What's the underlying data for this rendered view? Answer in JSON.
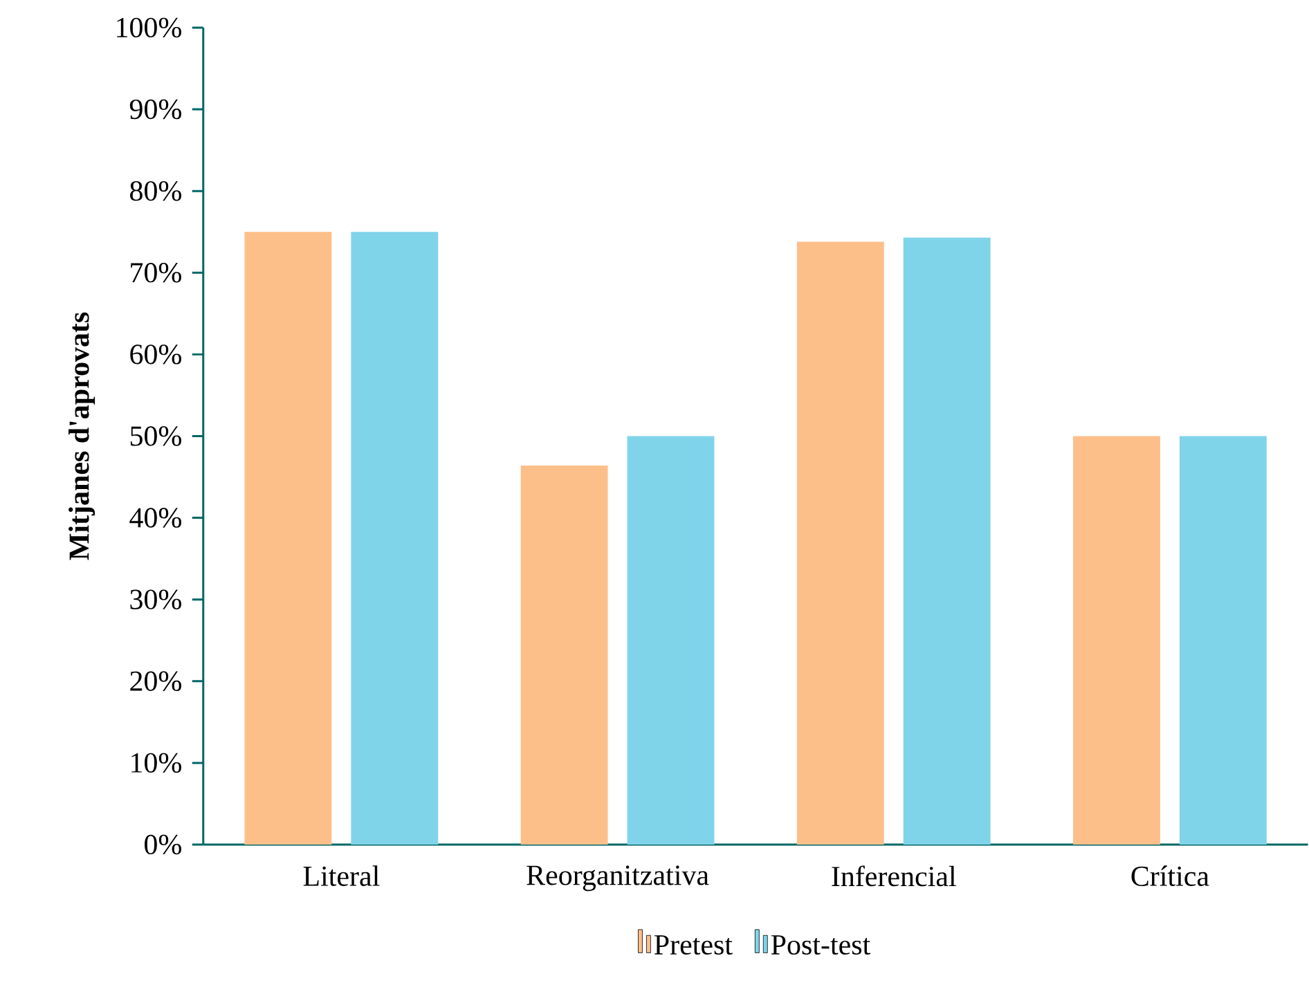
{
  "chart_data": {
    "type": "bar",
    "ylabel": "Mitjanes d'aprovats",
    "categories": [
      "Literal",
      "Reorganitzativa",
      "Inferencial",
      "Crítica"
    ],
    "series": [
      {
        "name": "Pretest",
        "color": "#fdbf8a",
        "values": [
          75,
          46.4,
          73.8,
          50
        ]
      },
      {
        "name": "Post-test",
        "color": "#80d4ea",
        "values": [
          75,
          50,
          74.3,
          50
        ]
      }
    ],
    "ylim": [
      0,
      100
    ],
    "yticks": [
      {
        "value": 0,
        "label": "0%"
      },
      {
        "value": 10,
        "label": "10%"
      },
      {
        "value": 20,
        "label": "20%"
      },
      {
        "value": 30,
        "label": "30%"
      },
      {
        "value": 40,
        "label": "40%"
      },
      {
        "value": 50,
        "label": "50%"
      },
      {
        "value": 60,
        "label": "60%"
      },
      {
        "value": 70,
        "label": "70%"
      },
      {
        "value": 80,
        "label": "80%"
      },
      {
        "value": 90,
        "label": "90%"
      },
      {
        "value": 100,
        "label": "100%"
      }
    ],
    "grid": false,
    "legend": "bottom"
  }
}
